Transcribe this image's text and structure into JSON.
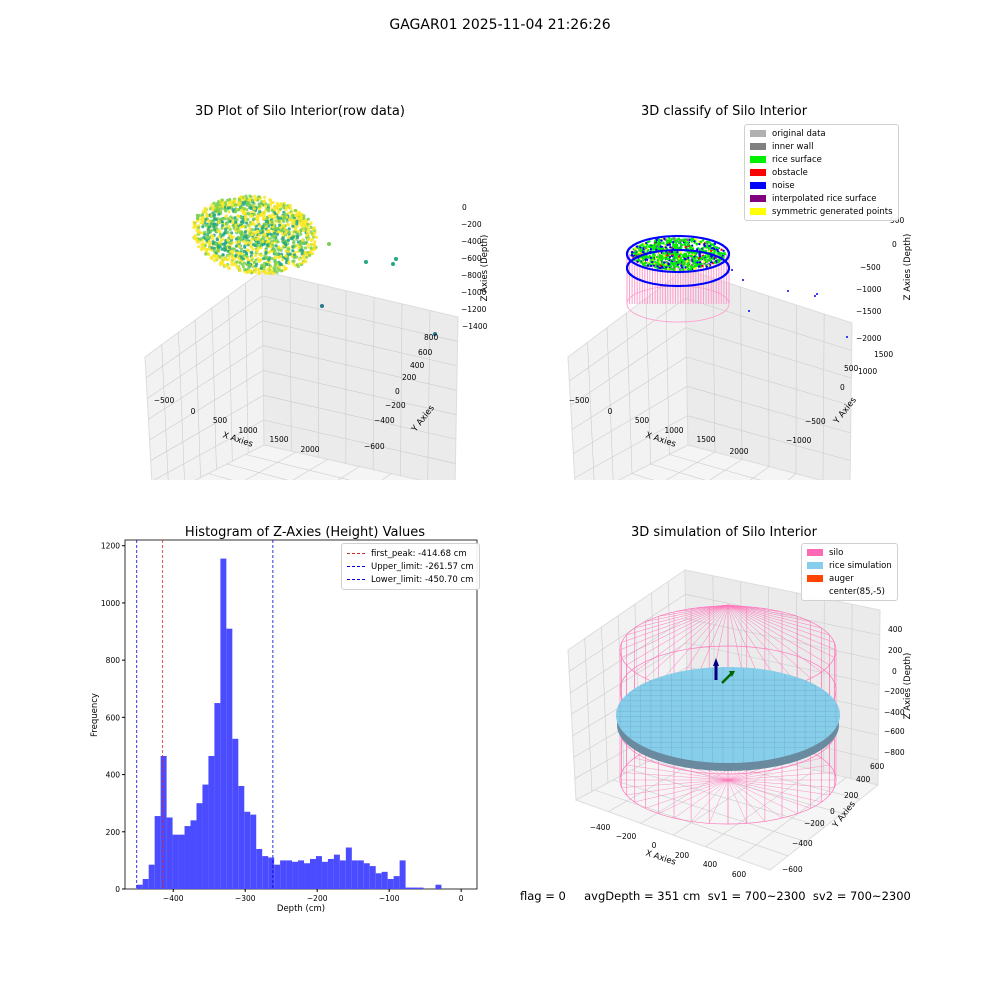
{
  "figure": {
    "suptitle": "GAGAR01 2025-11-04 21:26:26",
    "footer": "flag = 0     avgDepth = 351 cm  sv1 = 700~2300  sv2 = 700~2300"
  },
  "colors": {
    "hist_bar": "#4b4bff",
    "first_peak_line": "#d62728",
    "limit_line": "#0000dd",
    "silo_wire": "#ff77bb",
    "rice_sim": "#87ceeb",
    "pane": "#f2f2f2",
    "grid": "#cccccc"
  },
  "chart_data": [
    {
      "type": "scatter",
      "title": "3D Plot of Silo Interior(row data)",
      "xlabel": "X Axies",
      "ylabel": "Y Axies",
      "zlabel": "Z Axies (Depth)",
      "x_ticks": [
        "−500",
        "0",
        "500",
        "1000",
        "1500",
        "2000"
      ],
      "y_ticks": [
        "−600",
        "−400",
        "−200",
        "0",
        "200",
        "400",
        "600",
        "800"
      ],
      "z_ticks": [
        "−1400",
        "−1200",
        "−1000",
        "−800",
        "−600",
        "−400",
        "−200",
        "0"
      ],
      "colormap": [
        "#2a788e",
        "#22a884",
        "#7ad151",
        "#fde725"
      ]
    },
    {
      "type": "scatter",
      "title": "3D classify of Silo Interior",
      "xlabel": "X Axies",
      "ylabel": "Y Axies",
      "zlabel": "Z Axies (Depth)",
      "x_ticks": [
        "−500",
        "0",
        "500",
        "1000",
        "1500",
        "2000"
      ],
      "y_ticks": [
        "−1000",
        "−500",
        "0",
        "500",
        "1000",
        "1500"
      ],
      "z_ticks": [
        "−2000",
        "−1500",
        "−1000",
        "−500",
        "0",
        "500"
      ],
      "legend": [
        {
          "label": "original data",
          "color": "#b0b0b0"
        },
        {
          "label": "inner wall",
          "color": "#808080"
        },
        {
          "label": "rice surface",
          "color": "#00ee00"
        },
        {
          "label": "obstacle",
          "color": "#ff0000"
        },
        {
          "label": "noise",
          "color": "#0000ff"
        },
        {
          "label": "interpolated rice surface",
          "color": "#800080"
        },
        {
          "label": "symmetric generated points",
          "color": "#ffff00"
        }
      ]
    },
    {
      "type": "bar",
      "title": "Histogram of Z-Axies (Height) Values",
      "xlabel": "Depth (cm)",
      "ylabel": "Frequency",
      "xlim": [
        -467,
        22
      ],
      "ylim": [
        0,
        1220
      ],
      "x_ticks": [
        -400,
        -300,
        -200,
        -100,
        0
      ],
      "y_ticks": [
        0,
        200,
        400,
        600,
        800,
        1000,
        1200
      ],
      "bin_start": -450.7,
      "bin_width": 8.3,
      "values": [
        15,
        35,
        85,
        255,
        465,
        250,
        190,
        190,
        220,
        240,
        300,
        365,
        465,
        650,
        1155,
        910,
        525,
        360,
        270,
        260,
        140,
        115,
        110,
        85,
        100,
        100,
        95,
        100,
        90,
        105,
        115,
        95,
        105,
        120,
        100,
        145,
        100,
        100,
        90,
        80,
        55,
        60,
        35,
        45,
        100,
        5,
        5,
        5,
        0,
        0,
        15
      ],
      "lines": [
        {
          "label": "first_peak: -414.68 cm",
          "x": -414.68,
          "color": "#d62728"
        },
        {
          "label": "Upper_limit: -261.57 cm",
          "x": -261.57,
          "color": "#0000dd"
        },
        {
          "label": "Lower_limit: -450.70 cm",
          "x": -450.7,
          "color": "#0000dd"
        }
      ]
    },
    {
      "type": "surface",
      "title": "3D simulation of Silo Interior",
      "xlabel": "X Axies",
      "ylabel": "Y Axies",
      "zlabel": "Z Axies (Depth)",
      "x_ticks": [
        "−400",
        "−200",
        "0",
        "200",
        "400",
        "600"
      ],
      "y_ticks": [
        "−600",
        "−400",
        "−200",
        "0",
        "200",
        "400",
        "600"
      ],
      "z_ticks": [
        "−800",
        "−600",
        "−400",
        "−200",
        "0",
        "200",
        "400"
      ],
      "legend": [
        {
          "label": "silo",
          "color": "#ff69b4"
        },
        {
          "label": "rice simulation",
          "color": "#87ceeb"
        },
        {
          "label": "auger",
          "color": "#ff4500"
        },
        {
          "label": "center(85,-5)",
          "color": ""
        }
      ]
    }
  ]
}
